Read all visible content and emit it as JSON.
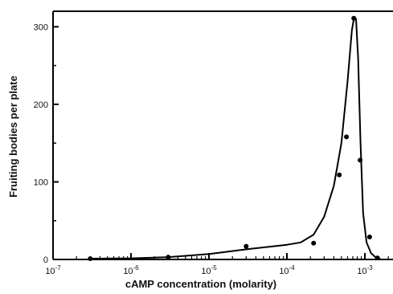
{
  "chart_data": {
    "type": "scatter",
    "title": "",
    "xlabel": "cAMP concentration (molarity)",
    "ylabel": "Fruiting bodies per plate",
    "x_scale": "log",
    "xlim": [
      1e-07,
      0.002
    ],
    "ylim": [
      0,
      320
    ],
    "grid": false,
    "x_ticks": [
      {
        "value": 1e-07,
        "base": "10",
        "exp": "-7"
      },
      {
        "value": 1e-06,
        "base": "10",
        "exp": "-6"
      },
      {
        "value": 1e-05,
        "base": "10",
        "exp": "-5"
      },
      {
        "value": 0.0001,
        "base": "10",
        "exp": "-4"
      },
      {
        "value": 0.001,
        "base": "10",
        "exp": "-3"
      }
    ],
    "y_ticks": [
      {
        "value": 0,
        "label": "0"
      },
      {
        "value": 100,
        "label": "100"
      },
      {
        "value": 200,
        "label": "200"
      },
      {
        "value": 300,
        "label": "300"
      }
    ],
    "series": [
      {
        "kind": "points",
        "x": [
          3e-07,
          3e-06,
          3e-05,
          0.00022,
          0.00047,
          0.00058,
          0.00072,
          0.00087,
          0.00115,
          0.00145
        ],
        "y": [
          1,
          3,
          17,
          21,
          109,
          158,
          311,
          128,
          29,
          2
        ],
        "color": "#000000"
      },
      {
        "kind": "curve",
        "x": [
          3e-07,
          1e-06,
          3e-06,
          1e-05,
          3e-05,
          0.0001,
          0.00015,
          0.00022,
          0.0003,
          0.0004,
          0.0005,
          0.0006,
          0.00068,
          0.00073,
          0.00077,
          0.00082,
          0.00088,
          0.00095,
          0.00105,
          0.0012,
          0.0014,
          0.0016
        ],
        "y": [
          1,
          1.5,
          3,
          7,
          13,
          19,
          22,
          32,
          55,
          95,
          150,
          230,
          295,
          313,
          310,
          260,
          150,
          60,
          22,
          8,
          2,
          0
        ],
        "color": "#000000"
      }
    ]
  }
}
